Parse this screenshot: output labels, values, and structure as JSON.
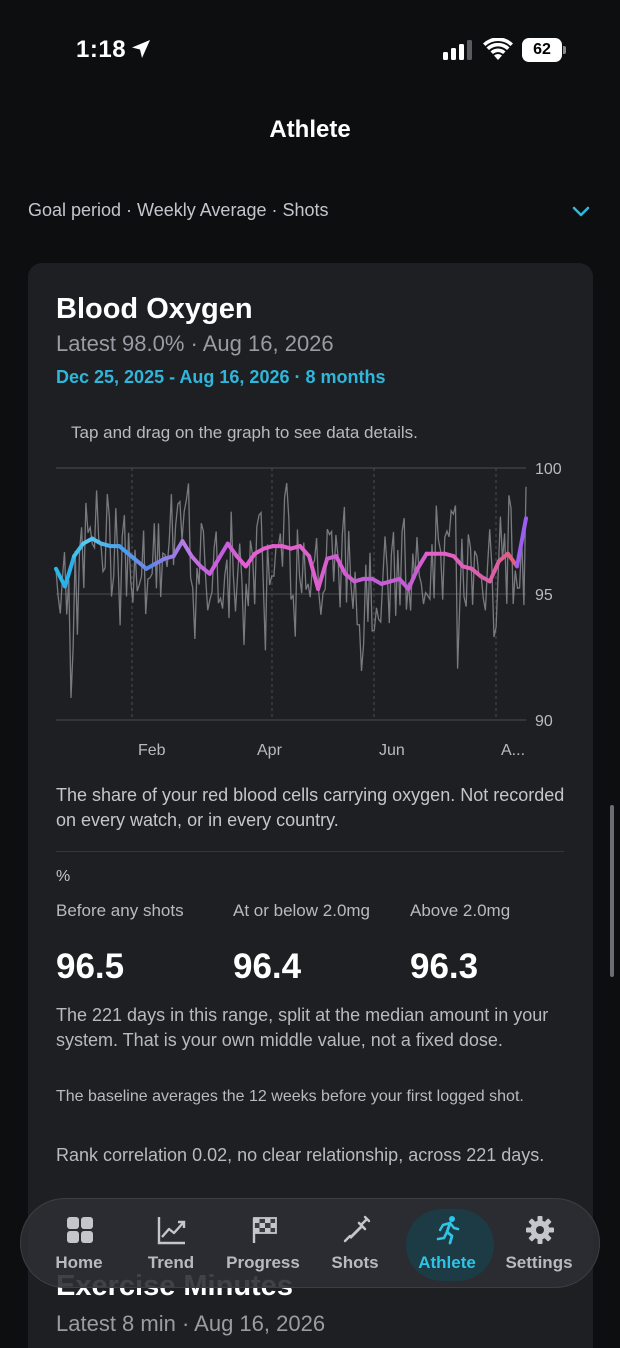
{
  "status_bar": {
    "time": "1:18",
    "battery": "62"
  },
  "nav": {
    "title": "Athlete"
  },
  "goal_row": {
    "text": "Goal period · Weekly Average · Shots"
  },
  "card": {
    "title": "Blood Oxygen",
    "latest": "Latest 98.0% · Aug 16, 2026",
    "range": "Dec 25, 2025 - Aug 16, 2026 · 8 months",
    "hint": "Tap and drag on the graph to see data details.",
    "description": "The share of your red blood cells carrying oxygen. Not recorded on every watch, or in every country.",
    "unit": "%",
    "columns": [
      {
        "label": "Before any shots",
        "value": "96.5"
      },
      {
        "label": "At or below 2.0mg",
        "value": "96.4"
      },
      {
        "label": "Above 2.0mg",
        "value": "96.3"
      }
    ],
    "para1": "The 221 days in this range, split at the median amount in your system. That is your own middle value, not a fixed dose.",
    "para2": "The baseline averages the 12 weeks before your first logged shot.",
    "para3": "Rank correlation 0.02, no clear relationship, across 221 days."
  },
  "next_card": {
    "title": "Exercise Minutes",
    "latest": "Latest 8 min · Aug 16, 2026"
  },
  "tabs": [
    {
      "label": "Home",
      "icon": "grid-icon"
    },
    {
      "label": "Trend",
      "icon": "chart-icon"
    },
    {
      "label": "Progress",
      "icon": "flag-icon"
    },
    {
      "label": "Shots",
      "icon": "syringe-icon"
    },
    {
      "label": "Athlete",
      "icon": "runner-icon",
      "active": true
    },
    {
      "label": "Settings",
      "icon": "gear-icon"
    }
  ],
  "chart_data": {
    "type": "line",
    "ylim": [
      90,
      100
    ],
    "yticks": [
      "100",
      "95",
      "90"
    ],
    "xticks": [
      "Feb",
      "Apr",
      "Jun",
      "A..."
    ],
    "series": [
      {
        "values": [
          96.0,
          95.3,
          96.5,
          97.0,
          97.2,
          97.0,
          96.9,
          96.9,
          96.6,
          96.3,
          96.0,
          96.2,
          96.4,
          96.5,
          97.1,
          96.5,
          96.1,
          95.8,
          96.4,
          97.0,
          96.5,
          96.1,
          96.6,
          96.8,
          96.9,
          96.9,
          96.8,
          96.9,
          96.5,
          95.2,
          96.4,
          96.5,
          95.8,
          95.5,
          95.6,
          95.6,
          95.4,
          95.5,
          95.6,
          95.2,
          96.0,
          96.6,
          96.6,
          96.6,
          96.5,
          96.1,
          96.0,
          95.7,
          95.5,
          96.3,
          96.6,
          96.1,
          98.0
        ],
        "colors": [
          "#29b6e8",
          "#2ab0ea",
          "#3fc0ee",
          "#58c6f0",
          "#55c2ef",
          "#52b4ef",
          "#4aaaef",
          "#4a9eef",
          "#5696ee",
          "#6a8bec",
          "#5b86ec",
          "#7d80ea",
          "#8f7ce8",
          "#a27ae7",
          "#b87ae6",
          "#c36fe4",
          "#c764e2",
          "#cd5ee0",
          "#c35cdf",
          "#d35ed9",
          "#e25ed6",
          "#e55fd4",
          "#e65fd3",
          "#e45fd1",
          "#e35fd0",
          "#e45fd0",
          "#e55fcf",
          "#e25fce",
          "#e05fce",
          "#d95ece",
          "#cc5ed2",
          "#d45ed2",
          "#d05ed0",
          "#c75dd4",
          "#c05dd6",
          "#c15dd6",
          "#c55dd5",
          "#c65dd5",
          "#c15dd5",
          "#c65dd5",
          "#d45ed0",
          "#e45fcc",
          "#e55fc8",
          "#e45fc4",
          "#e25fc0",
          "#e05fba",
          "#dd5fb0",
          "#d95faa",
          "#da5fa6",
          "#d95f8e",
          "#e35f80",
          "#9b5ef0",
          "#8d5af0"
        ]
      }
    ]
  }
}
